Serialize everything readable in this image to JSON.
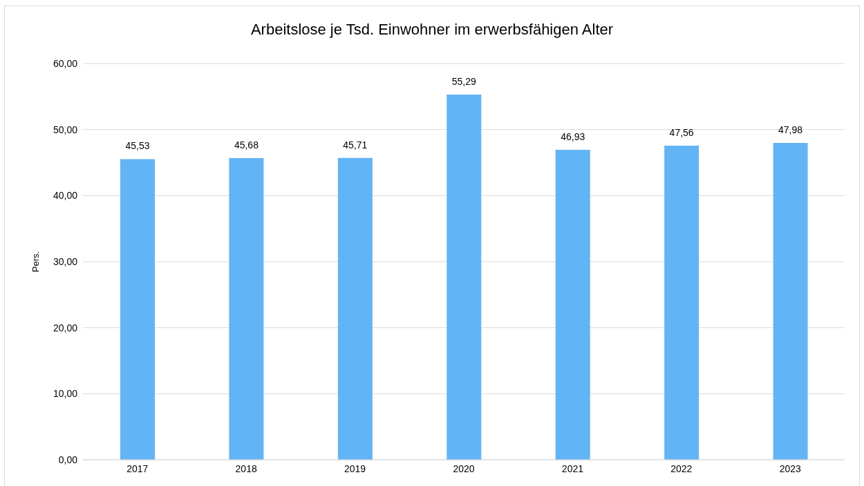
{
  "chart_data": {
    "type": "bar",
    "title": "Arbeitslose je Tsd. Einwohner im erwerbsfähigen Alter",
    "ylabel": "Pers.",
    "categories": [
      "2017",
      "2018",
      "2019",
      "2020",
      "2021",
      "2022",
      "2023"
    ],
    "values": [
      45.53,
      45.68,
      45.71,
      55.29,
      46.93,
      47.56,
      47.98
    ],
    "value_labels": [
      "45,53",
      "45,68",
      "45,71",
      "55,29",
      "46,93",
      "47,56",
      "47,98"
    ],
    "color": "#63b4f5",
    "ylim": [
      0,
      60
    ],
    "yticks": [
      {
        "value": 0,
        "label": "0,00"
      },
      {
        "value": 10,
        "label": "10,00"
      },
      {
        "value": 20,
        "label": "20,00"
      },
      {
        "value": 30,
        "label": "30,00"
      },
      {
        "value": 40,
        "label": "40,00"
      },
      {
        "value": 50,
        "label": "50,00"
      },
      {
        "value": 60,
        "label": "60,00"
      }
    ],
    "grid": "y",
    "legend": false
  }
}
